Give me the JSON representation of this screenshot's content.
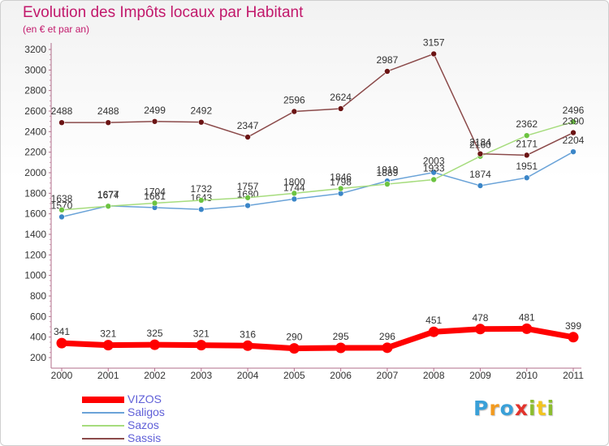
{
  "title": "Evolution des Impôts locaux par Habitant",
  "subtitle": "(en € et par an)",
  "brand": {
    "text": "Proxiti",
    "letters": [
      {
        "ch": "P",
        "color": "#3aa0d8"
      },
      {
        "ch": "r",
        "color": "#f29a1f"
      },
      {
        "ch": "o",
        "color": "#3aa0d8"
      },
      {
        "ch": "x",
        "color": "#e2332c"
      },
      {
        "ch": "i",
        "color": "#8cbd2f"
      },
      {
        "ch": "t",
        "color": "#f2c41f"
      },
      {
        "ch": "i",
        "color": "#8cbd2f"
      }
    ]
  },
  "chart_data": {
    "type": "line",
    "x": [
      "2000",
      "2001",
      "2002",
      "2003",
      "2004",
      "2005",
      "2006",
      "2007",
      "2008",
      "2009",
      "2010",
      "2011"
    ],
    "yticks": [
      "200",
      "400",
      "600",
      "800",
      "1000",
      "1200",
      "1400",
      "1600",
      "1800",
      "2000",
      "2200",
      "2400",
      "2600",
      "2800",
      "3000",
      "3200"
    ],
    "ylim": [
      200,
      3200
    ],
    "grid": false,
    "legend_position": "bottom-left",
    "series": [
      {
        "name": "VIZOS",
        "color": "#ff0000",
        "values": [
          341,
          321,
          325,
          321,
          316,
          290,
          295,
          296,
          451,
          478,
          481,
          399
        ],
        "emphasis": true
      },
      {
        "name": "Saligos",
        "color": "#6aa3d8",
        "marker": "#3b86c8",
        "values": [
          1570,
          1677,
          1661,
          1643,
          1680,
          1744,
          1798,
          1919,
          2003,
          1874,
          1951,
          2204
        ]
      },
      {
        "name": "Sazos",
        "color": "#a6dc7d",
        "marker": "#6cc341",
        "values": [
          1638,
          1674,
          1704,
          1732,
          1757,
          1800,
          1846,
          1889,
          1933,
          2160,
          2362,
          2496
        ]
      },
      {
        "name": "Sassis",
        "color": "#8b4a4a",
        "marker": "#6b1414",
        "values": [
          2488,
          2488,
          2499,
          2492,
          2347,
          2596,
          2624,
          2987,
          3157,
          2184,
          2171,
          2390
        ]
      }
    ]
  }
}
